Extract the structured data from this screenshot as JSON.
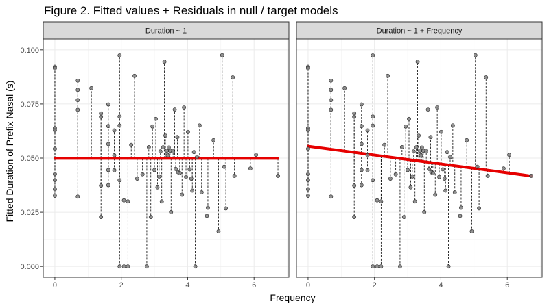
{
  "title": "Figure 2. Fitted values + Residuals in null / target models",
  "chart_data": {
    "type": "scatter",
    "xlabel": "Frequency",
    "ylabel": "Fitted Duration of Prefix Nasal (s)",
    "xlim": [
      -0.35,
      7.05
    ],
    "ylim": [
      -0.005,
      0.105
    ],
    "x_ticks": [
      0,
      2,
      4,
      6
    ],
    "y_ticks": [
      0.0,
      0.025,
      0.05,
      0.075,
      0.1
    ],
    "y_tick_labels": [
      "0.000",
      "0.025",
      "0.050",
      "0.075",
      "0.100"
    ],
    "grid": true,
    "panels": [
      {
        "strip": "Duration ~ 1",
        "fit": {
          "intercept": 0.0499,
          "slope": 0
        }
      },
      {
        "strip": "Duration ~ 1 + Frequency",
        "fit": {
          "intercept": 0.0555,
          "slope": -0.00205
        }
      }
    ],
    "points": {
      "x": [
        0,
        0,
        0,
        0,
        0,
        0,
        0,
        0,
        0,
        0.69,
        0.69,
        0.69,
        0.69,
        0.69,
        1.1,
        1.39,
        1.39,
        1.39,
        1.39,
        1.61,
        1.61,
        1.61,
        1.61,
        1.61,
        1.79,
        1.79,
        1.79,
        1.95,
        1.95,
        1.95,
        1.95,
        1.95,
        2.08,
        2.08,
        2.2,
        2.2,
        2.3,
        2.4,
        2.48,
        2.64,
        2.77,
        2.83,
        2.89,
        2.94,
        3.0,
        3.04,
        3.09,
        3.14,
        3.18,
        3.22,
        3.26,
        3.3,
        3.33,
        3.37,
        3.4,
        3.43,
        3.47,
        3.5,
        3.56,
        3.61,
        3.64,
        3.69,
        3.71,
        3.76,
        3.83,
        3.89,
        3.95,
        4.01,
        4.06,
        4.11,
        4.14,
        4.19,
        4.23,
        4.28,
        4.36,
        4.42,
        4.58,
        4.61,
        4.78,
        4.93,
        5.04,
        5.1,
        5.15,
        5.36,
        5.41,
        5.89,
        6.06,
        6.72
      ],
      "y": [
        0.0922,
        0.0915,
        0.0638,
        0.0628,
        0.0543,
        0.0426,
        0.0398,
        0.0356,
        0.0326,
        0.0858,
        0.0815,
        0.0768,
        0.0723,
        0.0322,
        0.0823,
        0.0706,
        0.0691,
        0.0373,
        0.0228,
        0.0748,
        0.0648,
        0.0565,
        0.0445,
        0.0375,
        0.0628,
        0.0513,
        0.0444,
        0.0974,
        0.0692,
        0.065,
        0.0398,
        0.0,
        0.0,
        0.0305,
        0.03,
        0.0,
        0.0561,
        0.088,
        0.0405,
        0.0425,
        0.0,
        0.0551,
        0.0228,
        0.0646,
        0.0445,
        0.0681,
        0.0365,
        0.0415,
        0.0531,
        0.03,
        0.055,
        0.0945,
        0.0604,
        0.0534,
        0.0512,
        0.0549,
        0.0534,
        0.0251,
        0.0531,
        0.0724,
        0.045,
        0.0597,
        0.0435,
        0.0431,
        0.0331,
        0.0734,
        0.0413,
        0.0621,
        0.0448,
        0.0405,
        0.035,
        0.0528,
        0.0,
        0.0505,
        0.0651,
        0.0342,
        0.0233,
        0.0271,
        0.0583,
        0.0162,
        0.0975,
        0.046,
        0.0268,
        0.0873,
        0.0418,
        0.0452,
        0.0515,
        0.0418
      ]
    }
  }
}
